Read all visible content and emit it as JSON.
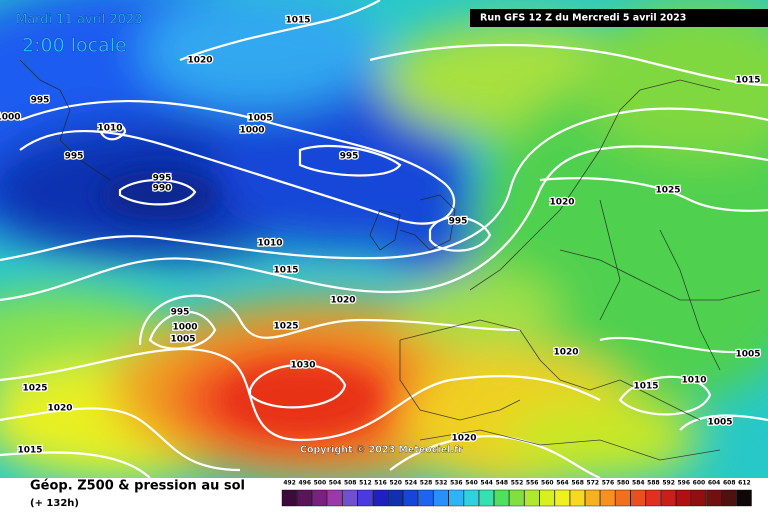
{
  "header": {
    "valid_date": "Mardi 11 avril 2023",
    "local_time": "2:00 locale",
    "run": "Run GFS 12 Z du Mercredi 5 avril 2023"
  },
  "isobar_labels": [
    "1015",
    "1020",
    "995",
    "1000",
    "1010",
    "1005",
    "1000",
    "995",
    "995",
    "995",
    "990",
    "1025",
    "1020",
    "995",
    "1010",
    "1015",
    "1020",
    "995",
    "1000",
    "1005",
    "1025",
    "1030",
    "1020",
    "1005",
    "1015",
    "1010",
    "1025",
    "1020",
    "1005",
    "1015",
    "1020",
    "1015"
  ],
  "footer": {
    "field": "Géop. Z500 & pression au sol",
    "forecast_hour": "(+ 132h)",
    "copyright": "Copyright © 2023 Meteociel.fr"
  },
  "scale": {
    "levels": [
      "492",
      "496",
      "500",
      "504",
      "508",
      "512",
      "516",
      "520",
      "524",
      "528",
      "532",
      "536",
      "540",
      "544",
      "548",
      "552",
      "556",
      "560",
      "564",
      "568",
      "572",
      "576",
      "580",
      "584",
      "588",
      "592",
      "596",
      "600",
      "604",
      "608",
      "612"
    ],
    "colors": [
      "#3c0a3c",
      "#5a145a",
      "#7a2080",
      "#9a3aaa",
      "#7050d0",
      "#4a3ae0",
      "#2020c0",
      "#1030b0",
      "#1446d8",
      "#1e64f0",
      "#2890f8",
      "#30b4f8",
      "#30d0e0",
      "#38e0b0",
      "#50e060",
      "#80e040",
      "#b0e830",
      "#d8f020",
      "#f0f020",
      "#f8d820",
      "#f8b020",
      "#f89020",
      "#f07020",
      "#e85020",
      "#e03020",
      "#c82018",
      "#b01010",
      "#901010",
      "#701010",
      "#501010",
      "#100808"
    ]
  }
}
